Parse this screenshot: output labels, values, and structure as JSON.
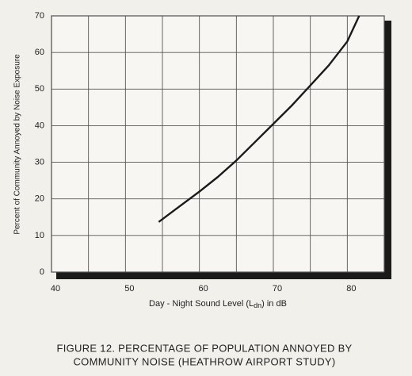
{
  "chart_data": {
    "type": "line",
    "title": [
      "FIGURE 12.  PERCENTAGE OF POPULATION ANNOYED BY",
      "COMMUNITY NOISE (HEATHROW AIRPORT STUDY)"
    ],
    "x_label": [
      "Day - Night Sound Level (L",
      "dn",
      ") in dB"
    ],
    "y_label": "Percent of Community Annoyed by Noise Exposure",
    "xlim": [
      40,
      85
    ],
    "ylim": [
      0,
      70
    ],
    "xticks": [
      40,
      50,
      60,
      70,
      80
    ],
    "x_minor_grid": [
      45,
      55,
      65,
      75,
      85
    ],
    "yticks": [
      0,
      10,
      20,
      30,
      40,
      50,
      60,
      70
    ],
    "grid": true,
    "series": [
      {
        "color": "#1a1a1a",
        "x": [
          54.5,
          57,
          60,
          62.5,
          65,
          67.5,
          70,
          72.5,
          75,
          77.5,
          80,
          81.6
        ],
        "values": [
          13.7,
          17.5,
          22,
          26,
          30.5,
          35.5,
          40.5,
          45.5,
          51,
          56.5,
          63,
          70
        ]
      }
    ]
  }
}
